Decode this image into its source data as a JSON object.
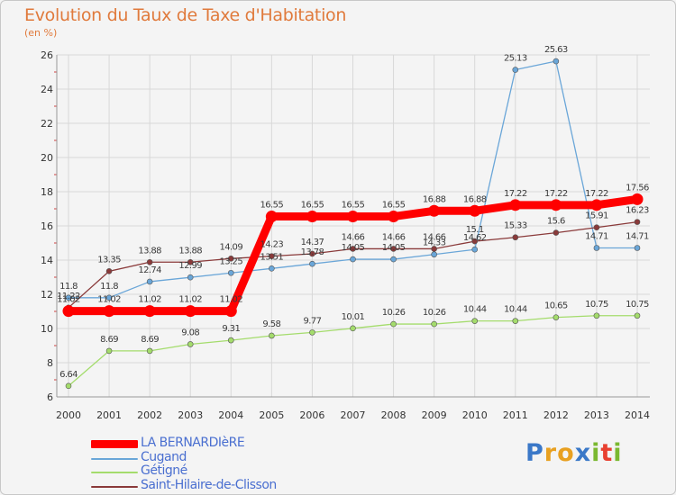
{
  "header": {
    "title": "Evolution du Taux de Taxe d'Habitation",
    "subtitle": "(en %)"
  },
  "logo": {
    "text": "Proxiti",
    "letter_colors": [
      "#3a78c8",
      "#e8a020",
      "#e8a020",
      "#3a78c8",
      "#7ab830",
      "#e84030",
      "#7ab830"
    ]
  },
  "chart_data": {
    "type": "line",
    "title": "Evolution du Taux de Taxe d'Habitation",
    "ylabel": "(en %)",
    "ylim": [
      6,
      26
    ],
    "yticks": [
      "6",
      "8",
      "10",
      "12",
      "14",
      "16",
      "18",
      "20",
      "22",
      "24",
      "26"
    ],
    "grid": true,
    "legend_position": "bottom-left",
    "x": [
      "2000",
      "2001",
      "2002",
      "2003",
      "2004",
      "2005",
      "2006",
      "2007",
      "2008",
      "2009",
      "2010",
      "2011",
      "2012",
      "2013",
      "2014"
    ],
    "series": [
      {
        "name": "LA BERNARDIèRE",
        "color": "#ff0000",
        "values": [
          11.02,
          11.02,
          11.02,
          11.02,
          11.02,
          16.55,
          16.55,
          16.55,
          16.55,
          16.88,
          16.88,
          17.22,
          17.22,
          17.22,
          17.56
        ],
        "labels": [
          "11.02",
          "11.02",
          "11.02",
          "11.02",
          "11.02",
          "16.55",
          "16.55",
          "16.55",
          "16.55",
          "16.88",
          "16.88",
          "17.22",
          "17.22",
          "17.22",
          "17.56"
        ]
      },
      {
        "name": "Cugand",
        "color": "#6aa6d8",
        "values": [
          11.8,
          11.8,
          12.74,
          12.99,
          13.25,
          13.51,
          13.78,
          14.05,
          14.05,
          14.33,
          14.62,
          25.13,
          25.63,
          14.71,
          14.71
        ],
        "labels": [
          "11.8",
          "11.8",
          "12.74",
          "12.99",
          "13.25",
          "13.51",
          "13.78",
          "14.05",
          "14.05",
          "14.33",
          "14.62",
          "25.13",
          "25.63",
          "14.71",
          "14.71"
        ]
      },
      {
        "name": "Gétigné",
        "color": "#a4dc6c",
        "values": [
          6.64,
          8.69,
          8.69,
          9.08,
          9.31,
          9.58,
          9.77,
          10.01,
          10.26,
          10.26,
          10.44,
          10.44,
          10.65,
          10.75,
          10.75
        ],
        "labels": [
          "6.64",
          "8.69",
          "8.69",
          "9.08",
          "9.31",
          "9.58",
          "9.77",
          "10.01",
          "10.26",
          "10.26",
          "10.44",
          "10.44",
          "10.65",
          "10.75",
          "10.75"
        ]
      },
      {
        "name": "Saint-Hilaire-de-Clisson",
        "color": "#8a3a3a",
        "values": [
          11.22,
          13.35,
          13.88,
          13.88,
          14.09,
          14.23,
          14.37,
          14.66,
          14.66,
          14.66,
          15.1,
          15.33,
          15.6,
          15.91,
          16.23
        ],
        "labels": [
          "11.22",
          "13.35",
          "13.88",
          "13.88",
          "14.09",
          "14.23",
          "14.37",
          "14.66",
          "14.66",
          "14.66",
          "15.1",
          "15.33",
          "15.6",
          "15.91",
          "16.23"
        ]
      }
    ]
  }
}
